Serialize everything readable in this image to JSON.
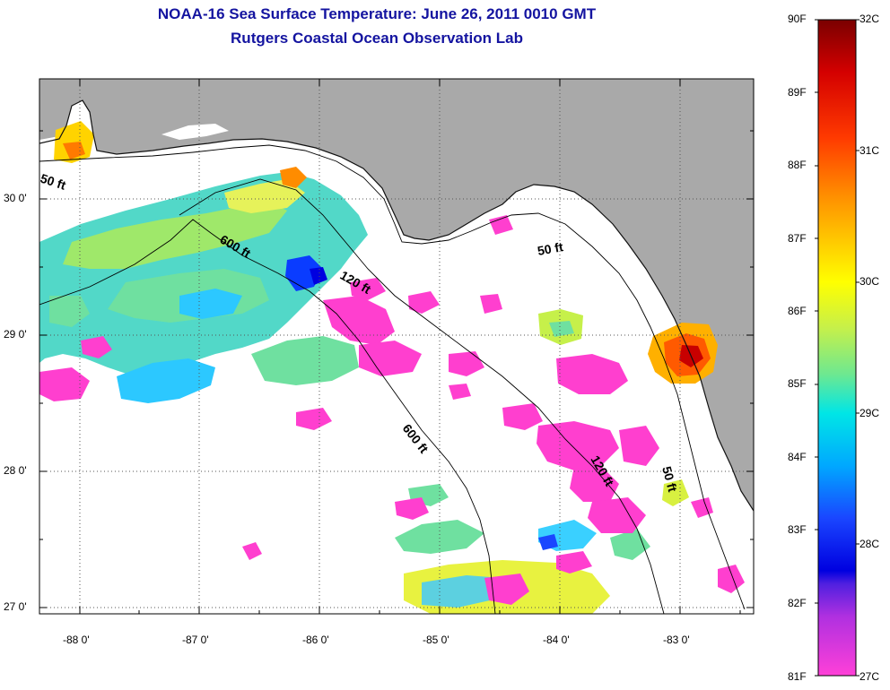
{
  "header": {
    "title": "NOAA-16 Sea Surface Temperature:  June 26, 2011 0010 GMT",
    "subtitle": "Rutgers Coastal Ocean Observation Lab"
  },
  "map": {
    "lat_labels": [
      "30 0'",
      "29 0'",
      "28 0'",
      "27 0'"
    ],
    "lon_labels": [
      "-88 0'",
      "-87 0'",
      "-86 0'",
      "-85 0'",
      "-84 0'",
      "-83 0'"
    ],
    "contour_labels": [
      "50 ft",
      "600 ft",
      "120 ft",
      "50 ft",
      "600 ft",
      "120 ft",
      "50 ft"
    ],
    "colors": {
      "land": "#a9a9a9",
      "cloud": "#ffffff",
      "frame": "#000000"
    }
  },
  "colorbar": {
    "fahrenheit_labels": [
      "90F",
      "89F",
      "88F",
      "87F",
      "86F",
      "85F",
      "84F",
      "83F",
      "82F",
      "81F"
    ],
    "celsius_labels": [
      "32C",
      "31C",
      "30C",
      "29C",
      "28C",
      "27C"
    ],
    "gradient_colors": [
      "#7a0000",
      "#d40000",
      "#ff3a00",
      "#ff8c00",
      "#ffd000",
      "#ffff00",
      "#c6f04a",
      "#6ee890",
      "#00e6e6",
      "#00a8ff",
      "#1a46ff",
      "#0000e0",
      "#8a2ae0",
      "#ff33cc",
      "#ff40d8"
    ]
  }
}
